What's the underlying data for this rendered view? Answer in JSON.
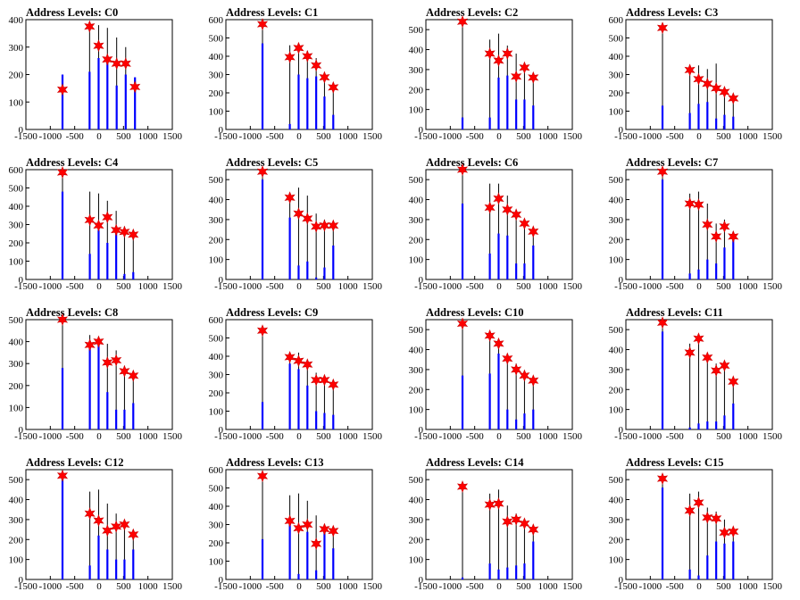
{
  "style": {
    "bar_color_full": "#000000",
    "bar_color_partial": "#0000ff",
    "marker_color": "#ff0000",
    "marker_edge": "#cc0000",
    "frame_color": "#000000"
  },
  "x_axis": {
    "range": [
      -1500,
      1500
    ],
    "ticks": [
      -1500,
      -1000,
      -500,
      0,
      500,
      1000,
      1500
    ],
    "tick_labels": [
      "-1500",
      "-1000",
      "-500",
      "0",
      "500",
      "1000",
      "1500"
    ]
  },
  "chart_data": [
    {
      "type": "bar",
      "title": "Address Levels: C0",
      "ylim": [
        0,
        400
      ],
      "yticks": [
        0,
        100,
        200,
        300,
        400
      ],
      "peaks": [
        {
          "x": -750,
          "blue": 200,
          "black": 200,
          "marker": 145
        },
        {
          "x": -195,
          "blue": 210,
          "black": 380,
          "marker": 375
        },
        {
          "x": -10,
          "blue": 260,
          "black": 380,
          "marker": 305
        },
        {
          "x": 170,
          "blue": 265,
          "black": 370,
          "marker": 255
        },
        {
          "x": 360,
          "blue": 160,
          "black": 335,
          "marker": 240
        },
        {
          "x": 545,
          "blue": 200,
          "black": 300,
          "marker": 240
        },
        {
          "x": 735,
          "blue": 190,
          "black": 190,
          "marker": 155
        }
      ]
    },
    {
      "type": "bar",
      "title": "Address Levels: C1",
      "ylim": [
        0,
        600
      ],
      "yticks": [
        0,
        100,
        200,
        300,
        400,
        500,
        600
      ],
      "peaks": [
        {
          "x": -750,
          "blue": 470,
          "black": 590,
          "marker": 575
        },
        {
          "x": -190,
          "blue": 30,
          "black": 460,
          "marker": 395
        },
        {
          "x": -10,
          "blue": 300,
          "black": 460,
          "marker": 445
        },
        {
          "x": 170,
          "blue": 280,
          "black": 430,
          "marker": 400
        },
        {
          "x": 350,
          "blue": 290,
          "black": 390,
          "marker": 350
        },
        {
          "x": 520,
          "blue": 180,
          "black": 310,
          "marker": 285
        },
        {
          "x": 700,
          "blue": 80,
          "black": 250,
          "marker": 230
        }
      ]
    },
    {
      "type": "bar",
      "title": "Address Levels: C2",
      "ylim": [
        0,
        550
      ],
      "yticks": [
        0,
        100,
        200,
        300,
        400,
        500
      ],
      "peaks": [
        {
          "x": -750,
          "blue": 60,
          "black": 550,
          "marker": 540
        },
        {
          "x": -190,
          "blue": 60,
          "black": 450,
          "marker": 380
        },
        {
          "x": -10,
          "blue": 260,
          "black": 480,
          "marker": 345
        },
        {
          "x": 170,
          "blue": 270,
          "black": 420,
          "marker": 380
        },
        {
          "x": 350,
          "blue": 150,
          "black": 380,
          "marker": 265
        },
        {
          "x": 520,
          "blue": 150,
          "black": 330,
          "marker": 310
        },
        {
          "x": 700,
          "blue": 120,
          "black": 280,
          "marker": 260
        }
      ]
    },
    {
      "type": "bar",
      "title": "Address Levels: C3",
      "ylim": [
        0,
        600
      ],
      "yticks": [
        0,
        100,
        200,
        300,
        400,
        500,
        600
      ],
      "peaks": [
        {
          "x": -750,
          "blue": 130,
          "black": 560,
          "marker": 555
        },
        {
          "x": -190,
          "blue": 90,
          "black": 350,
          "marker": 325
        },
        {
          "x": -10,
          "blue": 140,
          "black": 350,
          "marker": 275
        },
        {
          "x": 170,
          "blue": 150,
          "black": 330,
          "marker": 250
        },
        {
          "x": 350,
          "blue": 60,
          "black": 360,
          "marker": 225
        },
        {
          "x": 520,
          "blue": 80,
          "black": 230,
          "marker": 205
        },
        {
          "x": 700,
          "blue": 70,
          "black": 190,
          "marker": 170
        }
      ]
    },
    {
      "type": "bar",
      "title": "Address Levels: C4",
      "ylim": [
        0,
        600
      ],
      "yticks": [
        0,
        100,
        200,
        300,
        400,
        500,
        600
      ],
      "peaks": [
        {
          "x": -750,
          "blue": 480,
          "black": 600,
          "marker": 585
        },
        {
          "x": -190,
          "blue": 140,
          "black": 480,
          "marker": 325
        },
        {
          "x": -10,
          "blue": 270,
          "black": 470,
          "marker": 295
        },
        {
          "x": 170,
          "blue": 200,
          "black": 430,
          "marker": 340
        },
        {
          "x": 350,
          "blue": 290,
          "black": 375,
          "marker": 270
        },
        {
          "x": 520,
          "blue": 30,
          "black": 290,
          "marker": 260
        },
        {
          "x": 700,
          "blue": 40,
          "black": 260,
          "marker": 245
        }
      ]
    },
    {
      "type": "bar",
      "title": "Address Levels: C5",
      "ylim": [
        0,
        550
      ],
      "yticks": [
        0,
        100,
        200,
        300,
        400,
        500
      ],
      "peaks": [
        {
          "x": -750,
          "blue": 500,
          "black": 550,
          "marker": 540
        },
        {
          "x": -190,
          "blue": 310,
          "black": 430,
          "marker": 410
        },
        {
          "x": -10,
          "blue": 70,
          "black": 460,
          "marker": 330
        },
        {
          "x": 170,
          "blue": 90,
          "black": 420,
          "marker": 305
        },
        {
          "x": 350,
          "blue": 10,
          "black": 330,
          "marker": 265
        },
        {
          "x": 520,
          "blue": 60,
          "black": 300,
          "marker": 270
        },
        {
          "x": 700,
          "blue": 170,
          "black": 285,
          "marker": 270
        }
      ]
    },
    {
      "type": "bar",
      "title": "Address Levels: C6",
      "ylim": [
        0,
        550
      ],
      "yticks": [
        0,
        100,
        200,
        300,
        400,
        500
      ],
      "peaks": [
        {
          "x": -750,
          "blue": 380,
          "black": 560,
          "marker": 550
        },
        {
          "x": -190,
          "blue": 130,
          "black": 480,
          "marker": 360
        },
        {
          "x": -10,
          "blue": 230,
          "black": 480,
          "marker": 405
        },
        {
          "x": 170,
          "blue": 220,
          "black": 420,
          "marker": 350
        },
        {
          "x": 350,
          "blue": 80,
          "black": 330,
          "marker": 325
        },
        {
          "x": 520,
          "blue": 80,
          "black": 300,
          "marker": 280
        },
        {
          "x": 700,
          "blue": 170,
          "black": 250,
          "marker": 240
        }
      ]
    },
    {
      "type": "bar",
      "title": "Address Levels: C7",
      "ylim": [
        0,
        550
      ],
      "yticks": [
        0,
        100,
        200,
        300,
        400,
        500
      ],
      "peaks": [
        {
          "x": -750,
          "blue": 500,
          "black": 550,
          "marker": 540
        },
        {
          "x": -190,
          "blue": 30,
          "black": 430,
          "marker": 380
        },
        {
          "x": -10,
          "blue": 50,
          "black": 440,
          "marker": 375
        },
        {
          "x": 170,
          "blue": 100,
          "black": 380,
          "marker": 275
        },
        {
          "x": 350,
          "blue": 80,
          "black": 280,
          "marker": 215
        },
        {
          "x": 520,
          "blue": 160,
          "black": 300,
          "marker": 265
        },
        {
          "x": 700,
          "blue": 230,
          "black": 240,
          "marker": 215
        }
      ]
    },
    {
      "type": "bar",
      "title": "Address Levels: C8",
      "ylim": [
        0,
        500
      ],
      "yticks": [
        0,
        100,
        200,
        300,
        400,
        500
      ],
      "peaks": [
        {
          "x": -750,
          "blue": 280,
          "black": 510,
          "marker": 500
        },
        {
          "x": -190,
          "blue": 380,
          "black": 430,
          "marker": 385
        },
        {
          "x": -10,
          "blue": 390,
          "black": 420,
          "marker": 400
        },
        {
          "x": 170,
          "blue": 170,
          "black": 390,
          "marker": 305
        },
        {
          "x": 350,
          "blue": 90,
          "black": 360,
          "marker": 315
        },
        {
          "x": 520,
          "blue": 90,
          "black": 290,
          "marker": 265
        },
        {
          "x": 700,
          "blue": 120,
          "black": 260,
          "marker": 245
        }
      ]
    },
    {
      "type": "bar",
      "title": "Address Levels: C9",
      "ylim": [
        0,
        600
      ],
      "yticks": [
        0,
        100,
        200,
        300,
        400,
        500,
        600
      ],
      "peaks": [
        {
          "x": -750,
          "blue": 150,
          "black": 560,
          "marker": 540
        },
        {
          "x": -190,
          "blue": 360,
          "black": 420,
          "marker": 395
        },
        {
          "x": -10,
          "blue": 330,
          "black": 420,
          "marker": 375
        },
        {
          "x": 170,
          "blue": 240,
          "black": 380,
          "marker": 355
        },
        {
          "x": 350,
          "blue": 100,
          "black": 310,
          "marker": 270
        },
        {
          "x": 520,
          "blue": 90,
          "black": 290,
          "marker": 270
        },
        {
          "x": 700,
          "blue": 80,
          "black": 260,
          "marker": 245
        }
      ]
    },
    {
      "type": "bar",
      "title": "Address Levels: C10",
      "ylim": [
        0,
        550
      ],
      "yticks": [
        0,
        100,
        200,
        300,
        400,
        500
      ],
      "peaks": [
        {
          "x": -750,
          "blue": 270,
          "black": 540,
          "marker": 530
        },
        {
          "x": -190,
          "blue": 280,
          "black": 480,
          "marker": 470
        },
        {
          "x": -10,
          "blue": 380,
          "black": 440,
          "marker": 430
        },
        {
          "x": 170,
          "blue": 100,
          "black": 380,
          "marker": 355
        },
        {
          "x": 350,
          "blue": 50,
          "black": 330,
          "marker": 300
        },
        {
          "x": 520,
          "blue": 80,
          "black": 280,
          "marker": 270
        },
        {
          "x": 700,
          "blue": 100,
          "black": 240,
          "marker": 245
        }
      ]
    },
    {
      "type": "bar",
      "title": "Address Levels: C11",
      "ylim": [
        0,
        550
      ],
      "yticks": [
        0,
        100,
        200,
        300,
        400,
        500
      ],
      "peaks": [
        {
          "x": -750,
          "blue": 490,
          "black": 550,
          "marker": 535
        },
        {
          "x": -190,
          "blue": 10,
          "black": 430,
          "marker": 385
        },
        {
          "x": -10,
          "blue": 30,
          "black": 460,
          "marker": 455
        },
        {
          "x": 170,
          "blue": 40,
          "black": 380,
          "marker": 360
        },
        {
          "x": 350,
          "blue": 40,
          "black": 330,
          "marker": 295
        },
        {
          "x": 520,
          "blue": 70,
          "black": 320,
          "marker": 320
        },
        {
          "x": 700,
          "blue": 130,
          "black": 240,
          "marker": 240
        }
      ]
    },
    {
      "type": "bar",
      "title": "Address Levels: C12",
      "ylim": [
        0,
        550
      ],
      "yticks": [
        0,
        100,
        200,
        300,
        400,
        500
      ],
      "peaks": [
        {
          "x": -750,
          "blue": 510,
          "black": 530,
          "marker": 520
        },
        {
          "x": -190,
          "blue": 70,
          "black": 440,
          "marker": 330
        },
        {
          "x": -10,
          "blue": 220,
          "black": 450,
          "marker": 295
        },
        {
          "x": 170,
          "blue": 150,
          "black": 380,
          "marker": 245
        },
        {
          "x": 350,
          "blue": 100,
          "black": 330,
          "marker": 265
        },
        {
          "x": 520,
          "blue": 100,
          "black": 290,
          "marker": 275
        },
        {
          "x": 700,
          "blue": 150,
          "black": 250,
          "marker": 225
        }
      ]
    },
    {
      "type": "bar",
      "title": "Address Levels: C13",
      "ylim": [
        0,
        600
      ],
      "yticks": [
        0,
        100,
        200,
        300,
        400,
        500,
        600
      ],
      "peaks": [
        {
          "x": -750,
          "blue": 220,
          "black": 570,
          "marker": 565
        },
        {
          "x": -190,
          "blue": 310,
          "black": 460,
          "marker": 320
        },
        {
          "x": -10,
          "blue": 30,
          "black": 470,
          "marker": 280
        },
        {
          "x": 170,
          "blue": 260,
          "black": 430,
          "marker": 300
        },
        {
          "x": 350,
          "blue": 50,
          "black": 350,
          "marker": 195
        },
        {
          "x": 520,
          "blue": 260,
          "black": 300,
          "marker": 275
        },
        {
          "x": 700,
          "blue": 170,
          "black": 290,
          "marker": 265
        }
      ]
    },
    {
      "type": "bar",
      "title": "Address Levels: C14",
      "ylim": [
        0,
        550
      ],
      "yticks": [
        0,
        100,
        200,
        300,
        400,
        500
      ],
      "peaks": [
        {
          "x": -750,
          "blue": 10,
          "black": 480,
          "marker": 465
        },
        {
          "x": -190,
          "blue": 80,
          "black": 430,
          "marker": 375
        },
        {
          "x": -10,
          "blue": 50,
          "black": 450,
          "marker": 380
        },
        {
          "x": 170,
          "blue": 60,
          "black": 370,
          "marker": 290
        },
        {
          "x": 350,
          "blue": 70,
          "black": 330,
          "marker": 300
        },
        {
          "x": 520,
          "blue": 80,
          "black": 290,
          "marker": 280
        },
        {
          "x": 700,
          "blue": 190,
          "black": 270,
          "marker": 250
        }
      ]
    },
    {
      "type": "bar",
      "title": "Address Levels: C15",
      "ylim": [
        0,
        550
      ],
      "yticks": [
        0,
        100,
        200,
        300,
        400,
        500
      ],
      "peaks": [
        {
          "x": -750,
          "blue": 460,
          "black": 520,
          "marker": 505
        },
        {
          "x": -190,
          "blue": 50,
          "black": 430,
          "marker": 345
        },
        {
          "x": -10,
          "blue": 20,
          "black": 440,
          "marker": 385
        },
        {
          "x": 170,
          "blue": 120,
          "black": 360,
          "marker": 310
        },
        {
          "x": 350,
          "blue": 190,
          "black": 340,
          "marker": 305
        },
        {
          "x": 520,
          "blue": 180,
          "black": 300,
          "marker": 235
        },
        {
          "x": 700,
          "blue": 190,
          "black": 250,
          "marker": 240
        }
      ]
    }
  ]
}
